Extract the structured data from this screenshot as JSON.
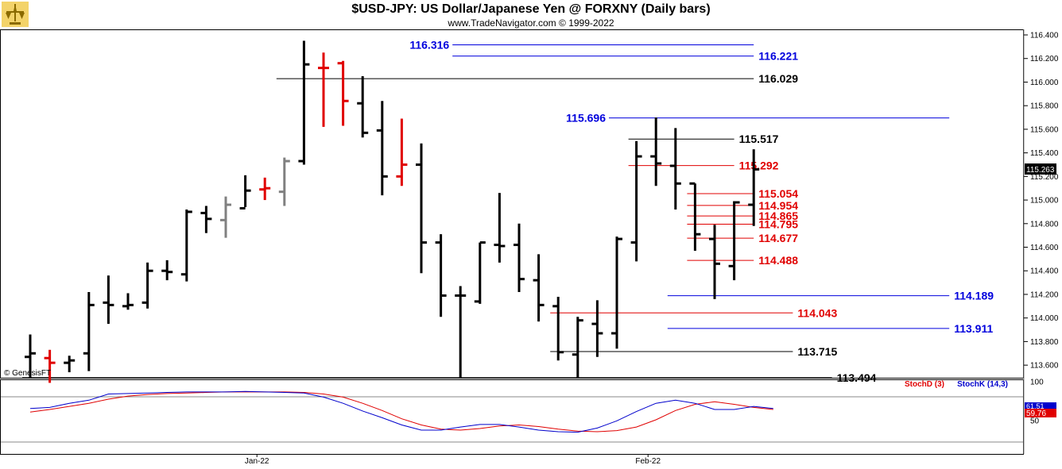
{
  "header": {
    "title": "$USD-JPY:  US Dollar/Japanese Yen @ FORXNY  (Daily bars)",
    "subtitle": "www.TradeNavigator.com © 1999-2022"
  },
  "watermark": "© GenesisFT",
  "colors": {
    "up": "#000000",
    "red": "#e00000",
    "gray": "#808080",
    "blue": "#0000dd",
    "stochD": "#e00000",
    "stochK": "#0000cc"
  },
  "chart_data": [
    {
      "type": "ohlc",
      "title": "$USD-JPY:  US Dollar/Japanese Yen @ FORXNY  (Daily bars)",
      "ylim": [
        113.4,
        116.42
      ],
      "y_ticks": [
        "116.400",
        "116.200",
        "116.000",
        "115.800",
        "115.600",
        "115.400",
        "115.200",
        "115.000",
        "114.800",
        "114.600",
        "114.400",
        "114.200",
        "114.000",
        "113.800",
        "113.600"
      ],
      "last_price": "115.263",
      "x_labels": [
        {
          "label": "Jan-22",
          "index": 12
        },
        {
          "label": "Feb-22",
          "index": 32
        }
      ],
      "bars": [
        {
          "o": 113.67,
          "h": 113.86,
          "l": 113.49,
          "c": 113.7,
          "color": "black"
        },
        {
          "o": 113.66,
          "h": 113.73,
          "l": 113.45,
          "c": 113.62,
          "color": "red"
        },
        {
          "o": 113.62,
          "h": 113.68,
          "l": 113.54,
          "c": 113.64,
          "color": "black"
        },
        {
          "o": 113.7,
          "h": 114.22,
          "l": 113.55,
          "c": 114.11,
          "color": "black"
        },
        {
          "o": 114.13,
          "h": 114.36,
          "l": 113.95,
          "c": 114.11,
          "color": "black"
        },
        {
          "o": 114.1,
          "h": 114.21,
          "l": 114.07,
          "c": 114.11,
          "color": "black"
        },
        {
          "o": 114.13,
          "h": 114.47,
          "l": 114.08,
          "c": 114.4,
          "color": "black"
        },
        {
          "o": 114.4,
          "h": 114.49,
          "l": 114.32,
          "c": 114.39,
          "color": "black"
        },
        {
          "o": 114.37,
          "h": 114.92,
          "l": 114.31,
          "c": 114.9,
          "color": "black"
        },
        {
          "o": 114.89,
          "h": 114.95,
          "l": 114.72,
          "c": 114.84,
          "color": "black"
        },
        {
          "o": 114.83,
          "h": 115.03,
          "l": 114.68,
          "c": 114.96,
          "color": "gray"
        },
        {
          "o": 114.93,
          "h": 115.21,
          "l": 114.94,
          "c": 115.08,
          "color": "black"
        },
        {
          "o": 115.09,
          "h": 115.19,
          "l": 115.0,
          "c": 115.1,
          "color": "red"
        },
        {
          "o": 115.07,
          "h": 115.36,
          "l": 114.95,
          "c": 115.33,
          "color": "gray"
        },
        {
          "o": 115.33,
          "h": 116.35,
          "l": 115.3,
          "c": 116.15,
          "color": "black"
        },
        {
          "o": 116.12,
          "h": 116.25,
          "l": 115.62,
          "c": 116.12,
          "color": "red"
        },
        {
          "o": 116.16,
          "h": 116.18,
          "l": 115.63,
          "c": 115.84,
          "color": "red"
        },
        {
          "o": 115.82,
          "h": 116.05,
          "l": 115.53,
          "c": 115.57,
          "color": "black"
        },
        {
          "o": 115.59,
          "h": 115.84,
          "l": 115.04,
          "c": 115.2,
          "color": "black"
        },
        {
          "o": 115.2,
          "h": 115.69,
          "l": 115.12,
          "c": 115.3,
          "color": "red"
        },
        {
          "o": 115.3,
          "h": 115.48,
          "l": 114.38,
          "c": 114.64,
          "color": "black"
        },
        {
          "o": 114.64,
          "h": 114.71,
          "l": 114.01,
          "c": 114.19,
          "color": "black"
        },
        {
          "o": 114.19,
          "h": 114.27,
          "l": 113.49,
          "c": 114.19,
          "color": "black"
        },
        {
          "o": 114.14,
          "h": 114.64,
          "l": 114.12,
          "c": 114.64,
          "color": "black"
        },
        {
          "o": 114.62,
          "h": 115.06,
          "l": 114.47,
          "c": 114.61,
          "color": "black"
        },
        {
          "o": 114.62,
          "h": 114.8,
          "l": 114.22,
          "c": 114.33,
          "color": "black"
        },
        {
          "o": 114.32,
          "h": 114.54,
          "l": 113.97,
          "c": 114.11,
          "color": "black"
        },
        {
          "o": 114.1,
          "h": 114.18,
          "l": 113.64,
          "c": 113.71,
          "color": "black"
        },
        {
          "o": 113.69,
          "h": 114.01,
          "l": 113.49,
          "c": 113.98,
          "color": "black"
        },
        {
          "o": 113.95,
          "h": 114.15,
          "l": 113.67,
          "c": 113.87,
          "color": "black"
        },
        {
          "o": 113.87,
          "h": 114.69,
          "l": 113.74,
          "c": 114.67,
          "color": "black"
        },
        {
          "o": 114.64,
          "h": 115.5,
          "l": 114.48,
          "c": 115.37,
          "color": "black"
        },
        {
          "o": 115.37,
          "h": 115.7,
          "l": 115.12,
          "c": 115.31,
          "color": "black"
        },
        {
          "o": 115.29,
          "h": 115.61,
          "l": 114.92,
          "c": 115.14,
          "color": "black"
        },
        {
          "o": 115.14,
          "h": 115.14,
          "l": 114.57,
          "c": 114.71,
          "color": "black"
        },
        {
          "o": 114.67,
          "h": 114.79,
          "l": 114.16,
          "c": 114.46,
          "color": "black"
        },
        {
          "o": 114.44,
          "h": 114.99,
          "l": 114.32,
          "c": 114.98,
          "color": "black"
        },
        {
          "o": 114.96,
          "h": 115.43,
          "l": 114.78,
          "c": 115.26,
          "color": "black"
        }
      ],
      "levels": [
        {
          "value": "116.316",
          "y": 116.316,
          "color": "blue",
          "x0": 22,
          "x1": 37,
          "label_side": "left"
        },
        {
          "value": "116.221",
          "y": 116.221,
          "color": "blue",
          "x0": 22,
          "x1": 37,
          "label_side": "right"
        },
        {
          "value": "116.029",
          "y": 116.029,
          "color": "black",
          "x0": 13,
          "x1": 37,
          "label_side": "right"
        },
        {
          "value": "115.696",
          "y": 115.696,
          "color": "blue",
          "x0": 30,
          "x1": 47,
          "label_side": "left"
        },
        {
          "value": "115.517",
          "y": 115.517,
          "color": "black",
          "x0": 31,
          "x1": 36,
          "label_side": "right"
        },
        {
          "value": "115.292",
          "y": 115.292,
          "color": "red",
          "x0": 31,
          "x1": 36,
          "label_side": "right"
        },
        {
          "value": "115.054",
          "y": 115.054,
          "color": "red",
          "x0": 34,
          "x1": 37,
          "label_side": "right"
        },
        {
          "value": "114.954",
          "y": 114.954,
          "color": "red",
          "x0": 34,
          "x1": 37,
          "label_side": "right"
        },
        {
          "value": "114.865",
          "y": 114.865,
          "color": "red",
          "x0": 34,
          "x1": 37,
          "label_side": "right"
        },
        {
          "value": "114.795",
          "y": 114.795,
          "color": "red",
          "x0": 34,
          "x1": 37,
          "label_side": "right"
        },
        {
          "value": "114.677",
          "y": 114.677,
          "color": "red",
          "x0": 34,
          "x1": 37,
          "label_side": "right"
        },
        {
          "value": "114.488",
          "y": 114.488,
          "color": "red",
          "x0": 34,
          "x1": 37,
          "label_side": "right"
        },
        {
          "value": "114.189",
          "y": 114.189,
          "color": "blue",
          "x0": 33,
          "x1": 47,
          "label_side": "right"
        },
        {
          "value": "114.043",
          "y": 114.043,
          "color": "red",
          "x0": 27,
          "x1": 39,
          "label_side": "right"
        },
        {
          "value": "113.911",
          "y": 113.911,
          "color": "blue",
          "x0": 33,
          "x1": 47,
          "label_side": "right"
        },
        {
          "value": "113.715",
          "y": 113.715,
          "color": "black",
          "x0": 27,
          "x1": 39,
          "label_side": "right"
        },
        {
          "value": "113.494",
          "y": 113.494,
          "color": "black",
          "x0": 0,
          "x1": 41,
          "label_side": "right"
        }
      ]
    },
    {
      "type": "line",
      "legend": [
        "StochD (3)",
        "StochK (14,3)"
      ],
      "y_ticks": [
        "100",
        "50"
      ],
      "ylim": [
        0,
        100
      ],
      "readouts": [
        "61.51",
        "59.76"
      ],
      "series": [
        {
          "name": "StochD (3)",
          "color": "red",
          "values": [
            55,
            60,
            66,
            72,
            80,
            86,
            89,
            91,
            92,
            93,
            94,
            94,
            94,
            94,
            93,
            90,
            84,
            72,
            58,
            42,
            30,
            22,
            20,
            23,
            28,
            30,
            27,
            22,
            18,
            17,
            19,
            26,
            40,
            58,
            70,
            75,
            70,
            64,
            60
          ]
        },
        {
          "name": "StochK (14,3)",
          "color": "blue",
          "values": [
            62,
            64,
            72,
            78,
            90,
            91,
            92,
            93,
            94,
            94,
            94,
            95,
            94,
            93,
            92,
            84,
            72,
            57,
            44,
            30,
            20,
            20,
            26,
            31,
            31,
            26,
            20,
            17,
            16,
            24,
            38,
            56,
            72,
            78,
            72,
            60,
            60,
            66,
            62
          ]
        }
      ]
    }
  ]
}
